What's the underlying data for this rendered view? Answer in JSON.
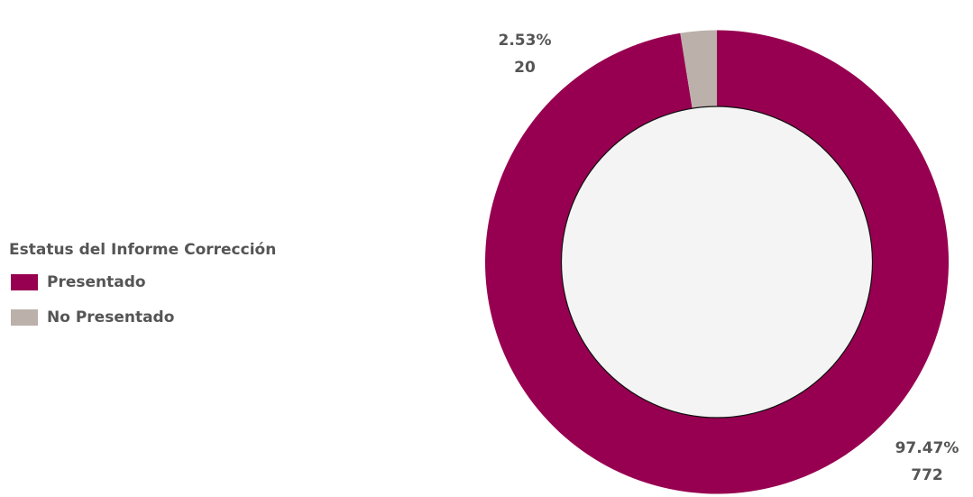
{
  "chart_data": {
    "type": "pie",
    "legend_title": "Estatus del Informe Corrección",
    "categories": [
      "Presentado",
      "No Presentado"
    ],
    "values": [
      97.47,
      2.53
    ],
    "value_labels": [
      "97.47%",
      "2.53%"
    ],
    "counts": [
      772,
      20
    ],
    "colors": [
      "#970050",
      "#bbb0aa"
    ],
    "donut": true,
    "legend": "left"
  }
}
